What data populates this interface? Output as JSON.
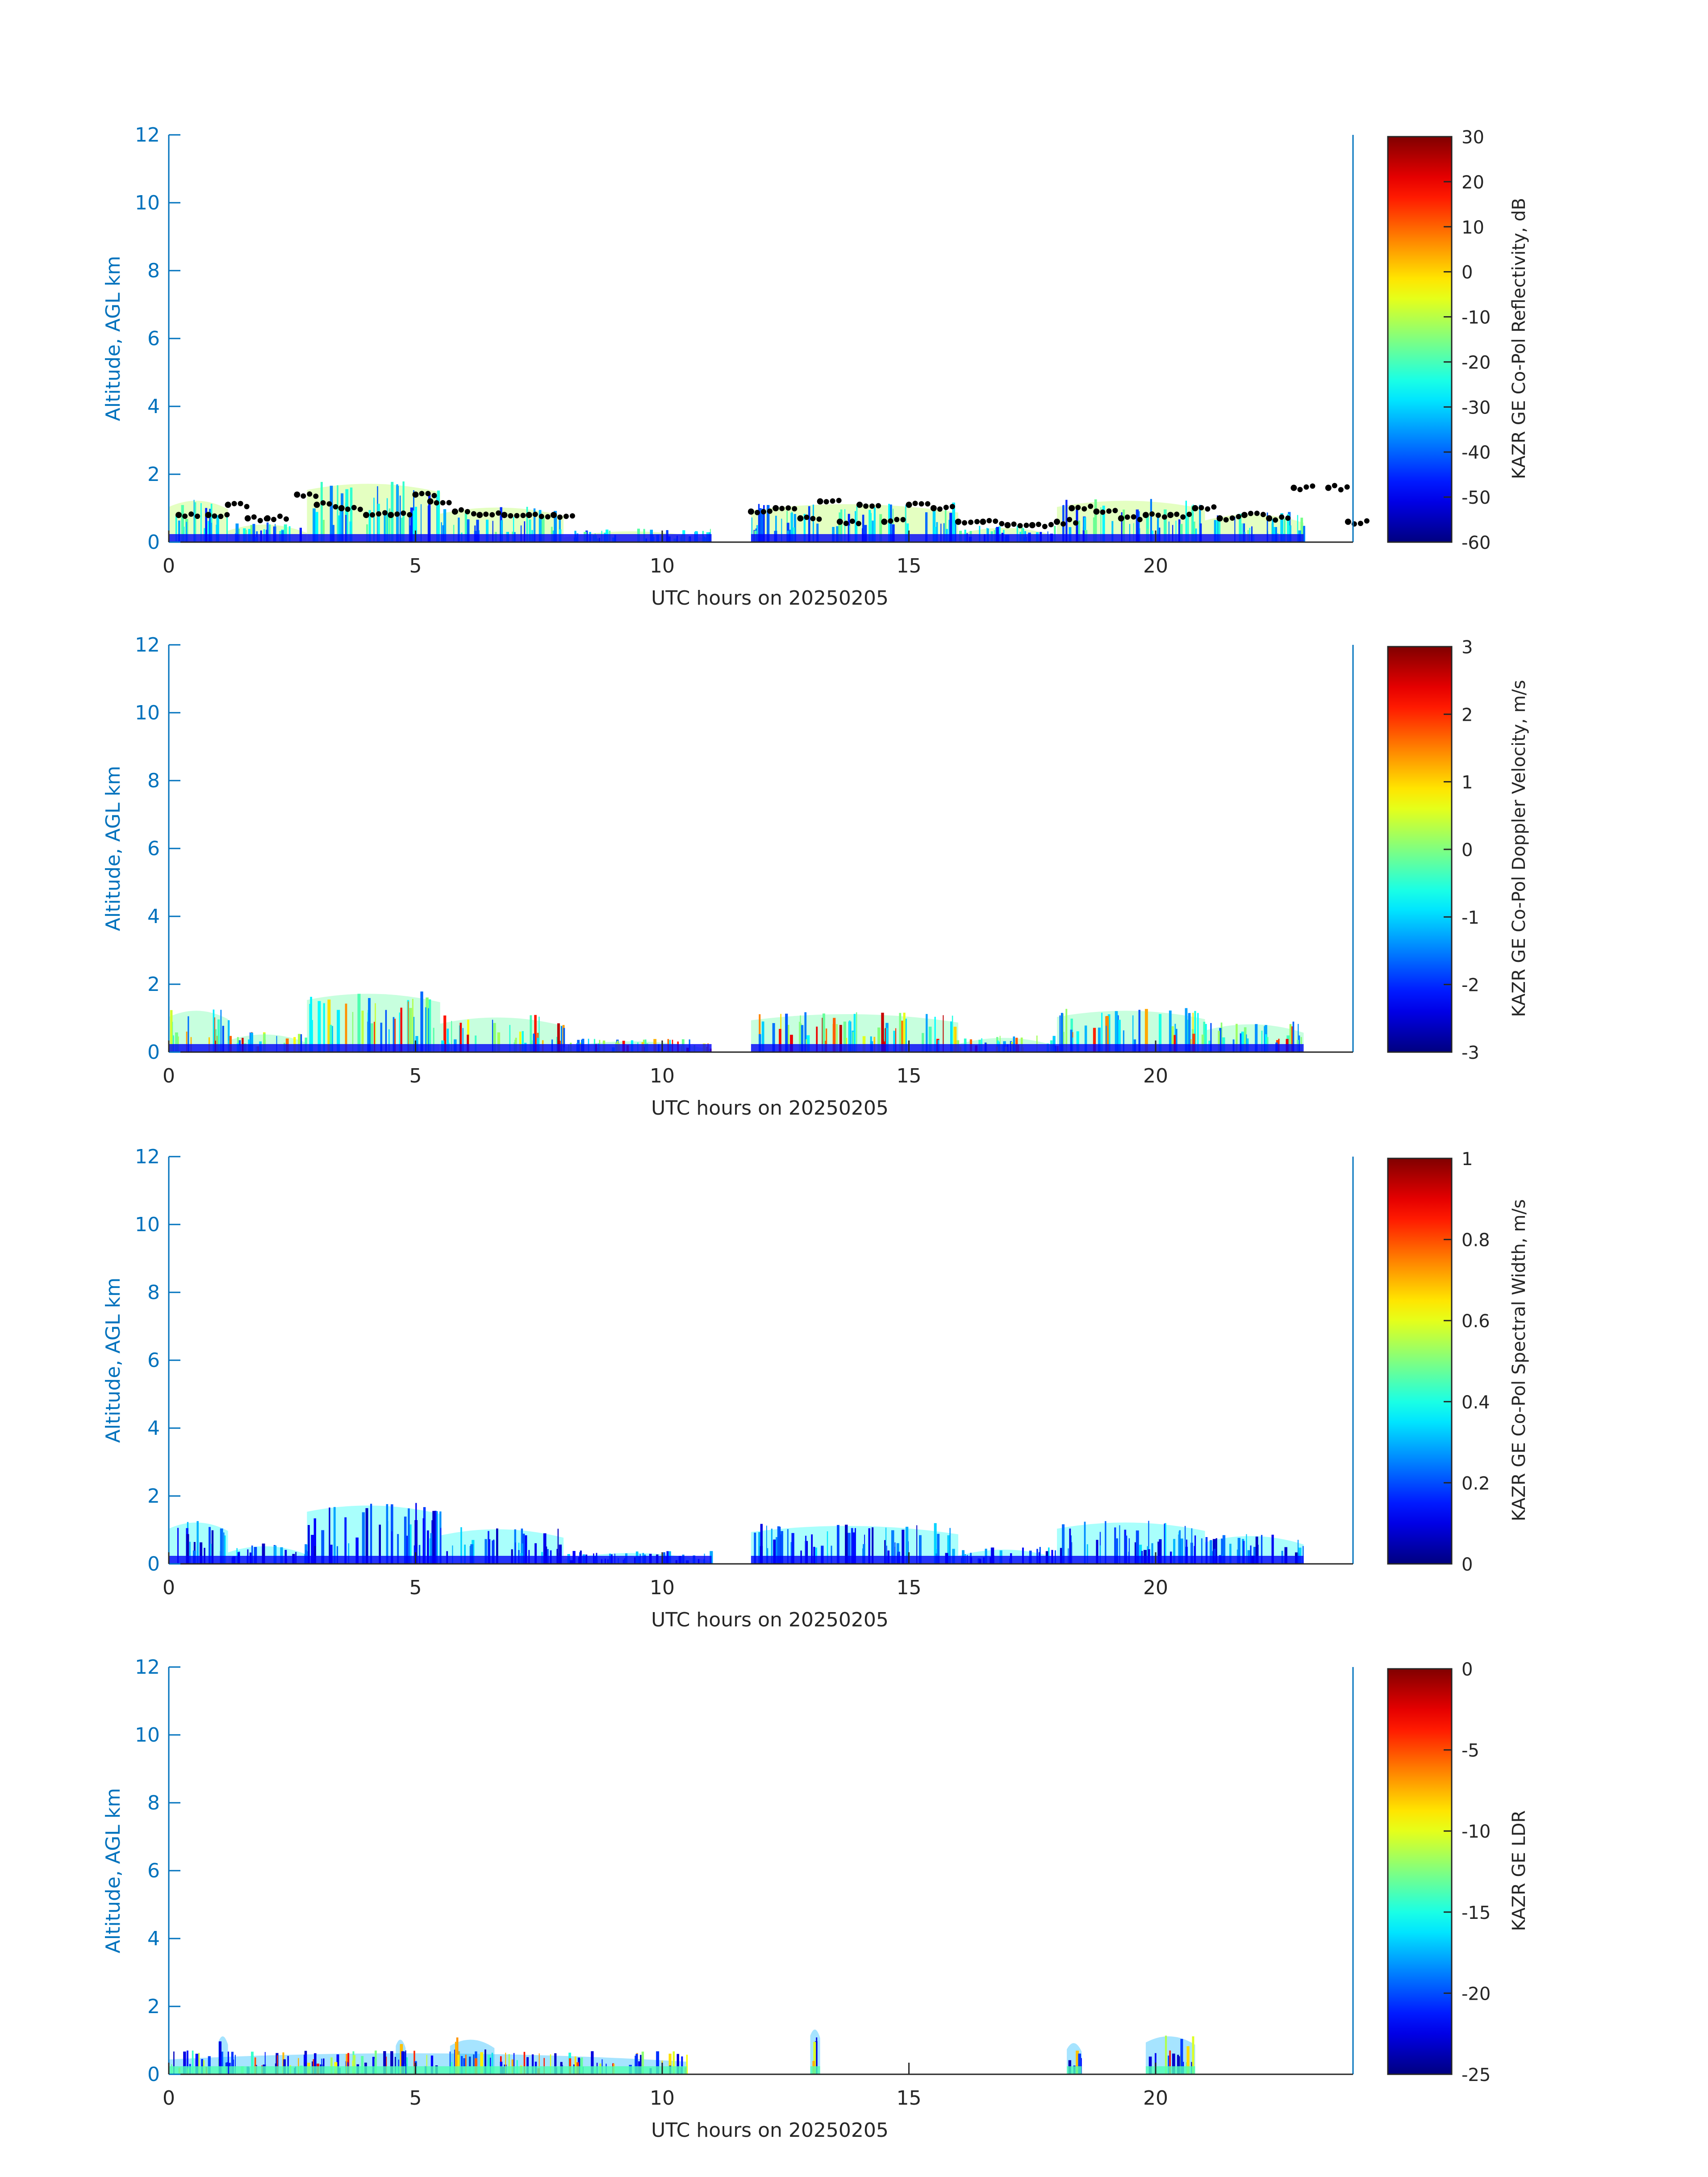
{
  "figure": {
    "colormap": "jet",
    "axis_color": "#0072BD",
    "text_color": "#262626",
    "background": "#ffffff"
  },
  "chart_data": [
    {
      "type": "heatmap",
      "title": "",
      "xlabel": "UTC hours on 20250205",
      "ylabel": "Altitude, AGL km",
      "xlim": [
        0,
        24
      ],
      "ylim": [
        0,
        12
      ],
      "xticks": [
        0,
        5,
        10,
        15,
        20
      ],
      "yticks": [
        0,
        2,
        4,
        6,
        8,
        10,
        12
      ],
      "colorbar": {
        "label": "KAZR GE Co-Pol Reflectivity, dB",
        "range": [
          -60,
          30
        ],
        "ticks": [
          -60,
          -50,
          -40,
          -30,
          -20,
          -10,
          0,
          10,
          20,
          30
        ]
      },
      "echo_segments": [
        {
          "t0": 0.0,
          "t1": 1.2,
          "top_km": 1.3
        },
        {
          "t0": 1.2,
          "t1": 2.8,
          "top_km": 0.6
        },
        {
          "t0": 2.8,
          "t1": 5.5,
          "top_km": 1.8
        },
        {
          "t0": 5.5,
          "t1": 8.0,
          "top_km": 1.1
        },
        {
          "t0": 8.0,
          "t1": 11.0,
          "top_km": 0.4
        },
        {
          "t0": 11.8,
          "t1": 16.0,
          "top_km": 1.2
        },
        {
          "t0": 16.0,
          "t1": 18.0,
          "top_km": 0.5
        },
        {
          "t0": 18.0,
          "t1": 21.0,
          "top_km": 1.3
        },
        {
          "t0": 21.0,
          "t1": 23.0,
          "top_km": 0.9
        }
      ],
      "cloud_base_points": [
        [
          0.2,
          0.8
        ],
        [
          0.8,
          0.8
        ],
        [
          1.2,
          1.1
        ],
        [
          1.6,
          0.7
        ],
        [
          2.0,
          0.7
        ],
        [
          2.6,
          1.4
        ],
        [
          3.0,
          1.1
        ],
        [
          3.5,
          1.0
        ],
        [
          4.0,
          0.8
        ],
        [
          4.5,
          0.8
        ],
        [
          5.0,
          1.4
        ],
        [
          5.3,
          1.2
        ],
        [
          5.8,
          0.9
        ],
        [
          6.3,
          0.8
        ],
        [
          6.8,
          0.8
        ],
        [
          7.3,
          0.8
        ],
        [
          7.8,
          0.8
        ],
        [
          11.8,
          0.9
        ],
        [
          12.3,
          1.0
        ],
        [
          12.8,
          0.7
        ],
        [
          13.2,
          1.2
        ],
        [
          13.6,
          0.6
        ],
        [
          14.0,
          1.1
        ],
        [
          14.5,
          0.6
        ],
        [
          15.0,
          1.1
        ],
        [
          15.5,
          1.0
        ],
        [
          16.0,
          0.6
        ],
        [
          16.5,
          0.6
        ],
        [
          17.0,
          0.5
        ],
        [
          17.5,
          0.5
        ],
        [
          18.0,
          0.6
        ],
        [
          18.3,
          1.0
        ],
        [
          18.8,
          0.9
        ],
        [
          19.3,
          0.7
        ],
        [
          19.8,
          0.8
        ],
        [
          20.3,
          0.8
        ],
        [
          20.8,
          1.0
        ],
        [
          21.3,
          0.7
        ],
        [
          21.8,
          0.8
        ],
        [
          22.3,
          0.7
        ],
        [
          22.8,
          1.6
        ],
        [
          23.5,
          1.6
        ],
        [
          23.9,
          0.6
        ]
      ]
    },
    {
      "type": "heatmap",
      "title": "",
      "xlabel": "UTC hours on 20250205",
      "ylabel": "Altitude, AGL km",
      "xlim": [
        0,
        24
      ],
      "ylim": [
        0,
        12
      ],
      "xticks": [
        0,
        5,
        10,
        15,
        20
      ],
      "yticks": [
        0,
        2,
        4,
        6,
        8,
        10,
        12
      ],
      "colorbar": {
        "label": "KAZR GE Co-Pol Doppler Velocity, m/s",
        "range": [
          -3,
          3
        ],
        "ticks": [
          -3,
          -2,
          -1,
          0,
          1,
          2,
          3
        ]
      },
      "echo_segments": [
        {
          "t0": 0.0,
          "t1": 1.2,
          "top_km": 1.3
        },
        {
          "t0": 1.2,
          "t1": 2.8,
          "top_km": 0.6
        },
        {
          "t0": 2.8,
          "t1": 5.5,
          "top_km": 1.8
        },
        {
          "t0": 5.5,
          "t1": 8.0,
          "top_km": 1.1
        },
        {
          "t0": 8.0,
          "t1": 11.0,
          "top_km": 0.4
        },
        {
          "t0": 11.8,
          "t1": 16.0,
          "top_km": 1.2
        },
        {
          "t0": 16.0,
          "t1": 18.0,
          "top_km": 0.5
        },
        {
          "t0": 18.0,
          "t1": 21.0,
          "top_km": 1.3
        },
        {
          "t0": 21.0,
          "t1": 23.0,
          "top_km": 0.9
        }
      ]
    },
    {
      "type": "heatmap",
      "title": "",
      "xlabel": "UTC hours on 20250205",
      "ylabel": "Altitude, AGL km",
      "xlim": [
        0,
        24
      ],
      "ylim": [
        0,
        12
      ],
      "xticks": [
        0,
        5,
        10,
        15,
        20
      ],
      "yticks": [
        0,
        2,
        4,
        6,
        8,
        10,
        12
      ],
      "colorbar": {
        "label": "KAZR GE Co-Pol Spectral Width, m/s",
        "range": [
          0,
          1
        ],
        "ticks": [
          0,
          0.2,
          0.4,
          0.6,
          0.8,
          1
        ]
      },
      "echo_segments": [
        {
          "t0": 0.0,
          "t1": 1.2,
          "top_km": 1.3
        },
        {
          "t0": 1.2,
          "t1": 2.8,
          "top_km": 0.6
        },
        {
          "t0": 2.8,
          "t1": 5.5,
          "top_km": 1.8
        },
        {
          "t0": 5.5,
          "t1": 8.0,
          "top_km": 1.1
        },
        {
          "t0": 8.0,
          "t1": 11.0,
          "top_km": 0.4
        },
        {
          "t0": 11.8,
          "t1": 16.0,
          "top_km": 1.2
        },
        {
          "t0": 16.0,
          "t1": 18.0,
          "top_km": 0.5
        },
        {
          "t0": 18.0,
          "t1": 21.0,
          "top_km": 1.3
        },
        {
          "t0": 21.0,
          "t1": 23.0,
          "top_km": 0.9
        }
      ]
    },
    {
      "type": "heatmap",
      "title": "",
      "xlabel": "UTC hours on 20250205",
      "ylabel": "Altitude, AGL km",
      "xlim": [
        0,
        24
      ],
      "ylim": [
        0,
        12
      ],
      "xticks": [
        0,
        5,
        10,
        15,
        20
      ],
      "yticks": [
        0,
        2,
        4,
        6,
        8,
        10,
        12
      ],
      "colorbar": {
        "label": "KAZR GE LDR",
        "range": [
          -25,
          0
        ],
        "ticks": [
          -25,
          -20,
          -15,
          -10,
          -5,
          0
        ]
      },
      "echo_segments": [
        {
          "t0": 0.0,
          "t1": 10.5,
          "top_km": 0.7
        },
        {
          "t0": 1.0,
          "t1": 1.2,
          "top_km": 1.2
        },
        {
          "t0": 4.6,
          "t1": 4.8,
          "top_km": 1.1
        },
        {
          "t0": 5.7,
          "t1": 6.6,
          "top_km": 1.1
        },
        {
          "t0": 13.0,
          "t1": 13.2,
          "top_km": 1.4
        },
        {
          "t0": 18.2,
          "t1": 18.5,
          "top_km": 1.0
        },
        {
          "t0": 19.8,
          "t1": 20.8,
          "top_km": 1.2
        }
      ]
    }
  ]
}
